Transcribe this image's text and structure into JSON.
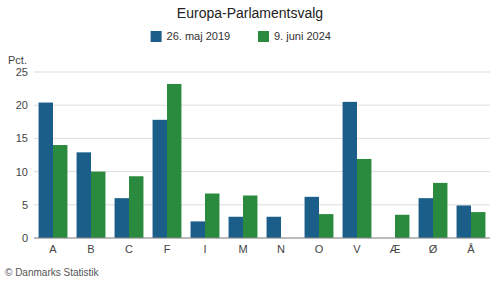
{
  "chart_data": {
    "type": "bar",
    "title": "Europa-Parlamentsvalg",
    "ylabel": "Pct.",
    "annotations": [
      "© Danmarks Statistik"
    ],
    "categories": [
      "A",
      "B",
      "C",
      "F",
      "I",
      "M",
      "N",
      "O",
      "V",
      "Æ",
      "Ø",
      "Å"
    ],
    "series": [
      {
        "name": "26. maj 2019",
        "color": "#1b5e8a",
        "values": [
          20.4,
          12.9,
          6.0,
          17.8,
          2.5,
          3.2,
          3.2,
          6.2,
          20.5,
          0.0,
          6.0,
          4.9
        ]
      },
      {
        "name": "9. juni 2024",
        "color": "#2a8a3e",
        "values": [
          14.0,
          10.0,
          9.3,
          23.2,
          6.7,
          6.4,
          0.0,
          3.6,
          11.9,
          3.5,
          8.3,
          3.9
        ]
      }
    ],
    "ylim": [
      0,
      25
    ],
    "yticks": [
      0,
      5,
      10,
      15,
      20,
      25
    ],
    "grid": true,
    "legend": "top"
  }
}
